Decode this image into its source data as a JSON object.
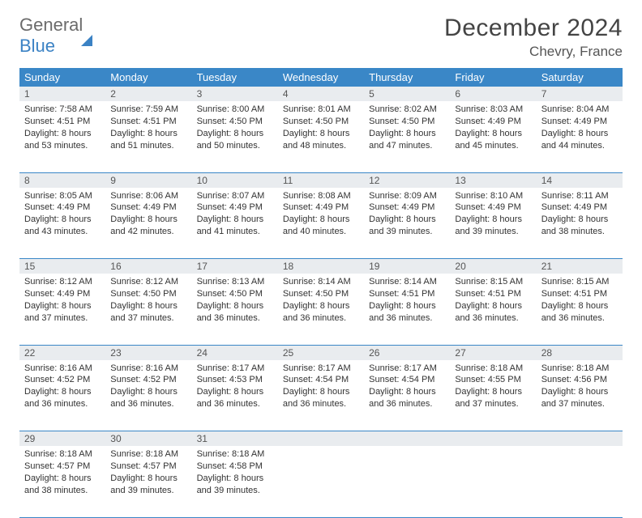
{
  "brand": {
    "part1": "General",
    "part2": "Blue"
  },
  "title": "December 2024",
  "location": "Chevry, France",
  "colors": {
    "header_bg": "#3a87c7",
    "header_text": "#ffffff",
    "daynum_bg": "#e9ecef",
    "daynum_text": "#555555",
    "cell_text": "#333333",
    "rule": "#3a87c7",
    "page_bg": "#ffffff",
    "logo_gray": "#6b6b6b",
    "logo_blue": "#3b82c4"
  },
  "typography": {
    "title_fontsize": 30,
    "location_fontsize": 17,
    "header_fontsize": 13,
    "daynum_fontsize": 12,
    "cell_fontsize": 11
  },
  "day_headers": [
    "Sunday",
    "Monday",
    "Tuesday",
    "Wednesday",
    "Thursday",
    "Friday",
    "Saturday"
  ],
  "weeks": [
    [
      {
        "n": "1",
        "sr": "Sunrise: 7:58 AM",
        "ss": "Sunset: 4:51 PM",
        "d1": "Daylight: 8 hours",
        "d2": "and 53 minutes."
      },
      {
        "n": "2",
        "sr": "Sunrise: 7:59 AM",
        "ss": "Sunset: 4:51 PM",
        "d1": "Daylight: 8 hours",
        "d2": "and 51 minutes."
      },
      {
        "n": "3",
        "sr": "Sunrise: 8:00 AM",
        "ss": "Sunset: 4:50 PM",
        "d1": "Daylight: 8 hours",
        "d2": "and 50 minutes."
      },
      {
        "n": "4",
        "sr": "Sunrise: 8:01 AM",
        "ss": "Sunset: 4:50 PM",
        "d1": "Daylight: 8 hours",
        "d2": "and 48 minutes."
      },
      {
        "n": "5",
        "sr": "Sunrise: 8:02 AM",
        "ss": "Sunset: 4:50 PM",
        "d1": "Daylight: 8 hours",
        "d2": "and 47 minutes."
      },
      {
        "n": "6",
        "sr": "Sunrise: 8:03 AM",
        "ss": "Sunset: 4:49 PM",
        "d1": "Daylight: 8 hours",
        "d2": "and 45 minutes."
      },
      {
        "n": "7",
        "sr": "Sunrise: 8:04 AM",
        "ss": "Sunset: 4:49 PM",
        "d1": "Daylight: 8 hours",
        "d2": "and 44 minutes."
      }
    ],
    [
      {
        "n": "8",
        "sr": "Sunrise: 8:05 AM",
        "ss": "Sunset: 4:49 PM",
        "d1": "Daylight: 8 hours",
        "d2": "and 43 minutes."
      },
      {
        "n": "9",
        "sr": "Sunrise: 8:06 AM",
        "ss": "Sunset: 4:49 PM",
        "d1": "Daylight: 8 hours",
        "d2": "and 42 minutes."
      },
      {
        "n": "10",
        "sr": "Sunrise: 8:07 AM",
        "ss": "Sunset: 4:49 PM",
        "d1": "Daylight: 8 hours",
        "d2": "and 41 minutes."
      },
      {
        "n": "11",
        "sr": "Sunrise: 8:08 AM",
        "ss": "Sunset: 4:49 PM",
        "d1": "Daylight: 8 hours",
        "d2": "and 40 minutes."
      },
      {
        "n": "12",
        "sr": "Sunrise: 8:09 AM",
        "ss": "Sunset: 4:49 PM",
        "d1": "Daylight: 8 hours",
        "d2": "and 39 minutes."
      },
      {
        "n": "13",
        "sr": "Sunrise: 8:10 AM",
        "ss": "Sunset: 4:49 PM",
        "d1": "Daylight: 8 hours",
        "d2": "and 39 minutes."
      },
      {
        "n": "14",
        "sr": "Sunrise: 8:11 AM",
        "ss": "Sunset: 4:49 PM",
        "d1": "Daylight: 8 hours",
        "d2": "and 38 minutes."
      }
    ],
    [
      {
        "n": "15",
        "sr": "Sunrise: 8:12 AM",
        "ss": "Sunset: 4:49 PM",
        "d1": "Daylight: 8 hours",
        "d2": "and 37 minutes."
      },
      {
        "n": "16",
        "sr": "Sunrise: 8:12 AM",
        "ss": "Sunset: 4:50 PM",
        "d1": "Daylight: 8 hours",
        "d2": "and 37 minutes."
      },
      {
        "n": "17",
        "sr": "Sunrise: 8:13 AM",
        "ss": "Sunset: 4:50 PM",
        "d1": "Daylight: 8 hours",
        "d2": "and 36 minutes."
      },
      {
        "n": "18",
        "sr": "Sunrise: 8:14 AM",
        "ss": "Sunset: 4:50 PM",
        "d1": "Daylight: 8 hours",
        "d2": "and 36 minutes."
      },
      {
        "n": "19",
        "sr": "Sunrise: 8:14 AM",
        "ss": "Sunset: 4:51 PM",
        "d1": "Daylight: 8 hours",
        "d2": "and 36 minutes."
      },
      {
        "n": "20",
        "sr": "Sunrise: 8:15 AM",
        "ss": "Sunset: 4:51 PM",
        "d1": "Daylight: 8 hours",
        "d2": "and 36 minutes."
      },
      {
        "n": "21",
        "sr": "Sunrise: 8:15 AM",
        "ss": "Sunset: 4:51 PM",
        "d1": "Daylight: 8 hours",
        "d2": "and 36 minutes."
      }
    ],
    [
      {
        "n": "22",
        "sr": "Sunrise: 8:16 AM",
        "ss": "Sunset: 4:52 PM",
        "d1": "Daylight: 8 hours",
        "d2": "and 36 minutes."
      },
      {
        "n": "23",
        "sr": "Sunrise: 8:16 AM",
        "ss": "Sunset: 4:52 PM",
        "d1": "Daylight: 8 hours",
        "d2": "and 36 minutes."
      },
      {
        "n": "24",
        "sr": "Sunrise: 8:17 AM",
        "ss": "Sunset: 4:53 PM",
        "d1": "Daylight: 8 hours",
        "d2": "and 36 minutes."
      },
      {
        "n": "25",
        "sr": "Sunrise: 8:17 AM",
        "ss": "Sunset: 4:54 PM",
        "d1": "Daylight: 8 hours",
        "d2": "and 36 minutes."
      },
      {
        "n": "26",
        "sr": "Sunrise: 8:17 AM",
        "ss": "Sunset: 4:54 PM",
        "d1": "Daylight: 8 hours",
        "d2": "and 36 minutes."
      },
      {
        "n": "27",
        "sr": "Sunrise: 8:18 AM",
        "ss": "Sunset: 4:55 PM",
        "d1": "Daylight: 8 hours",
        "d2": "and 37 minutes."
      },
      {
        "n": "28",
        "sr": "Sunrise: 8:18 AM",
        "ss": "Sunset: 4:56 PM",
        "d1": "Daylight: 8 hours",
        "d2": "and 37 minutes."
      }
    ],
    [
      {
        "n": "29",
        "sr": "Sunrise: 8:18 AM",
        "ss": "Sunset: 4:57 PM",
        "d1": "Daylight: 8 hours",
        "d2": "and 38 minutes."
      },
      {
        "n": "30",
        "sr": "Sunrise: 8:18 AM",
        "ss": "Sunset: 4:57 PM",
        "d1": "Daylight: 8 hours",
        "d2": "and 39 minutes."
      },
      {
        "n": "31",
        "sr": "Sunrise: 8:18 AM",
        "ss": "Sunset: 4:58 PM",
        "d1": "Daylight: 8 hours",
        "d2": "and 39 minutes."
      },
      null,
      null,
      null,
      null
    ]
  ]
}
